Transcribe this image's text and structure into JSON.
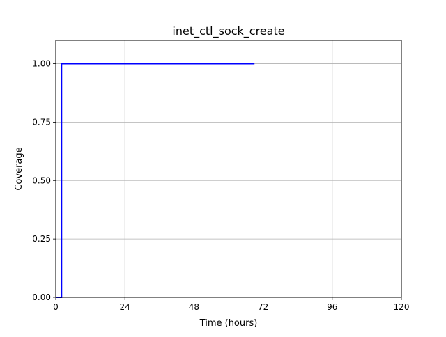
{
  "chart_data": {
    "type": "line",
    "title": "inet_ctl_sock_create",
    "xlabel": "Time (hours)",
    "ylabel": "Coverage",
    "xlim": [
      0,
      120
    ],
    "ylim": [
      0,
      1.1
    ],
    "grid": true,
    "x_ticks": [
      0,
      24,
      48,
      72,
      96,
      120
    ],
    "x_tick_labels": [
      "0",
      "24",
      "48",
      "72",
      "96",
      "120"
    ],
    "y_ticks": [
      0,
      0.25,
      0.5,
      0.75,
      1.0
    ],
    "y_tick_labels": [
      "0.00",
      "0.25",
      "0.50",
      "0.75",
      "1.00"
    ],
    "series": [
      {
        "color": "#0000ff",
        "x": [
          0,
          2,
          2,
          69
        ],
        "y": [
          0,
          0,
          1.0,
          1.0
        ]
      }
    ]
  }
}
